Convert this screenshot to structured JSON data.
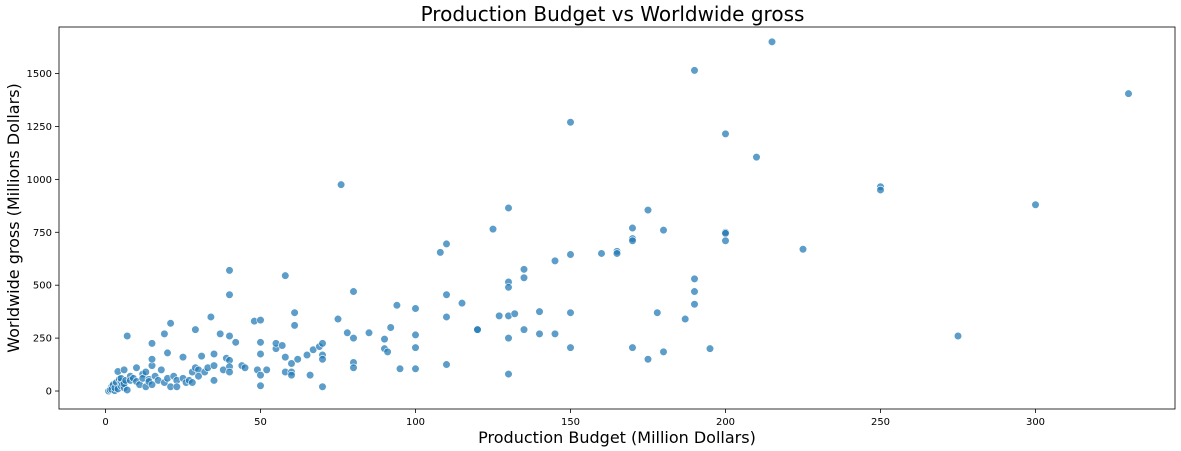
{
  "chart_data": {
    "type": "scatter",
    "title": "Production Budget vs Worldwide gross",
    "xlabel": "Production Budget (Million Dollars)",
    "ylabel": "Worldwide gross (Millions Dollars)",
    "xlim": [
      -15,
      345
    ],
    "ylim": [
      -85,
      1720
    ],
    "x_ticks": [
      0,
      50,
      100,
      150,
      200,
      250,
      300
    ],
    "y_ticks": [
      0,
      250,
      500,
      750,
      1000,
      1250,
      1500
    ],
    "grid": false,
    "point_color": "#1f77b4",
    "points": [
      [
        1,
        0
      ],
      [
        1.5,
        5
      ],
      [
        2,
        20
      ],
      [
        2,
        8
      ],
      [
        2.5,
        30
      ],
      [
        3,
        2
      ],
      [
        3,
        15
      ],
      [
        3.5,
        40
      ],
      [
        4,
        10
      ],
      [
        4,
        92
      ],
      [
        4.5,
        55
      ],
      [
        5,
        25
      ],
      [
        5,
        45
      ],
      [
        5,
        60
      ],
      [
        5.5,
        30
      ],
      [
        6,
        100
      ],
      [
        6,
        15
      ],
      [
        6,
        35
      ],
      [
        6.5,
        50
      ],
      [
        7,
        5
      ],
      [
        7,
        260
      ],
      [
        8,
        70
      ],
      [
        8,
        50
      ],
      [
        9,
        60
      ],
      [
        10,
        45
      ],
      [
        10,
        110
      ],
      [
        11,
        30
      ],
      [
        12,
        80
      ],
      [
        12,
        60
      ],
      [
        13,
        20
      ],
      [
        13,
        90
      ],
      [
        14,
        55
      ],
      [
        14,
        45
      ],
      [
        15,
        30
      ],
      [
        15,
        120
      ],
      [
        15,
        150
      ],
      [
        15,
        225
      ],
      [
        16,
        70
      ],
      [
        17,
        50
      ],
      [
        18,
        100
      ],
      [
        19,
        270
      ],
      [
        19,
        40
      ],
      [
        20,
        60
      ],
      [
        20,
        180
      ],
      [
        21,
        320
      ],
      [
        21,
        20
      ],
      [
        22,
        70
      ],
      [
        23,
        50
      ],
      [
        23,
        20
      ],
      [
        25,
        160
      ],
      [
        25,
        60
      ],
      [
        26,
        40
      ],
      [
        27,
        50
      ],
      [
        28,
        90
      ],
      [
        28,
        40
      ],
      [
        29,
        110
      ],
      [
        29,
        290
      ],
      [
        30,
        100
      ],
      [
        30,
        70
      ],
      [
        31,
        165
      ],
      [
        32,
        90
      ],
      [
        33,
        110
      ],
      [
        34,
        350
      ],
      [
        35,
        175
      ],
      [
        35,
        120
      ],
      [
        35,
        50
      ],
      [
        37,
        270
      ],
      [
        38,
        100
      ],
      [
        39,
        155
      ],
      [
        40,
        570
      ],
      [
        40,
        455
      ],
      [
        40,
        260
      ],
      [
        40,
        145
      ],
      [
        40,
        115
      ],
      [
        40,
        90
      ],
      [
        42,
        230
      ],
      [
        44,
        120
      ],
      [
        45,
        110
      ],
      [
        48,
        330
      ],
      [
        49,
        100
      ],
      [
        50,
        335
      ],
      [
        50,
        230
      ],
      [
        50,
        175
      ],
      [
        50,
        75
      ],
      [
        50,
        25
      ],
      [
        52,
        100
      ],
      [
        55,
        200
      ],
      [
        55,
        225
      ],
      [
        57,
        215
      ],
      [
        58,
        545
      ],
      [
        58,
        160
      ],
      [
        58,
        90
      ],
      [
        60,
        130
      ],
      [
        60,
        90
      ],
      [
        60,
        75
      ],
      [
        61,
        310
      ],
      [
        61,
        370
      ],
      [
        62,
        150
      ],
      [
        65,
        170
      ],
      [
        66,
        75
      ],
      [
        67,
        195
      ],
      [
        69,
        210
      ],
      [
        70,
        225
      ],
      [
        70,
        170
      ],
      [
        70,
        150
      ],
      [
        70,
        20
      ],
      [
        75,
        340
      ],
      [
        76,
        975
      ],
      [
        78,
        275
      ],
      [
        80,
        470
      ],
      [
        80,
        250
      ],
      [
        80,
        135
      ],
      [
        80,
        110
      ],
      [
        85,
        275
      ],
      [
        90,
        245
      ],
      [
        90,
        200
      ],
      [
        91,
        185
      ],
      [
        92,
        300
      ],
      [
        94,
        405
      ],
      [
        95,
        105
      ],
      [
        100,
        390
      ],
      [
        100,
        265
      ],
      [
        100,
        205
      ],
      [
        100,
        105
      ],
      [
        108,
        655
      ],
      [
        110,
        695
      ],
      [
        110,
        455
      ],
      [
        110,
        350
      ],
      [
        110,
        125
      ],
      [
        115,
        415
      ],
      [
        120,
        290
      ],
      [
        120,
        290
      ],
      [
        125,
        765
      ],
      [
        127,
        355
      ],
      [
        130,
        865
      ],
      [
        130,
        515
      ],
      [
        130,
        490
      ],
      [
        130,
        355
      ],
      [
        130,
        250
      ],
      [
        130,
        80
      ],
      [
        132,
        365
      ],
      [
        135,
        575
      ],
      [
        135,
        535
      ],
      [
        135,
        290
      ],
      [
        140,
        375
      ],
      [
        140,
        270
      ],
      [
        145,
        615
      ],
      [
        145,
        270
      ],
      [
        150,
        1270
      ],
      [
        150,
        645
      ],
      [
        150,
        370
      ],
      [
        150,
        205
      ],
      [
        160,
        650
      ],
      [
        165,
        660
      ],
      [
        165,
        650
      ],
      [
        170,
        770
      ],
      [
        170,
        720
      ],
      [
        170,
        710
      ],
      [
        170,
        205
      ],
      [
        175,
        855
      ],
      [
        175,
        150
      ],
      [
        178,
        370
      ],
      [
        180,
        760
      ],
      [
        180,
        185
      ],
      [
        187,
        340
      ],
      [
        190,
        1515
      ],
      [
        190,
        530
      ],
      [
        190,
        470
      ],
      [
        190,
        410
      ],
      [
        195,
        200
      ],
      [
        200,
        1215
      ],
      [
        200,
        750
      ],
      [
        200,
        745
      ],
      [
        200,
        710
      ],
      [
        210,
        1105
      ],
      [
        215,
        1650
      ],
      [
        225,
        670
      ],
      [
        250,
        965
      ],
      [
        250,
        950
      ],
      [
        275,
        260
      ],
      [
        300,
        880
      ],
      [
        330,
        1405
      ]
    ]
  }
}
